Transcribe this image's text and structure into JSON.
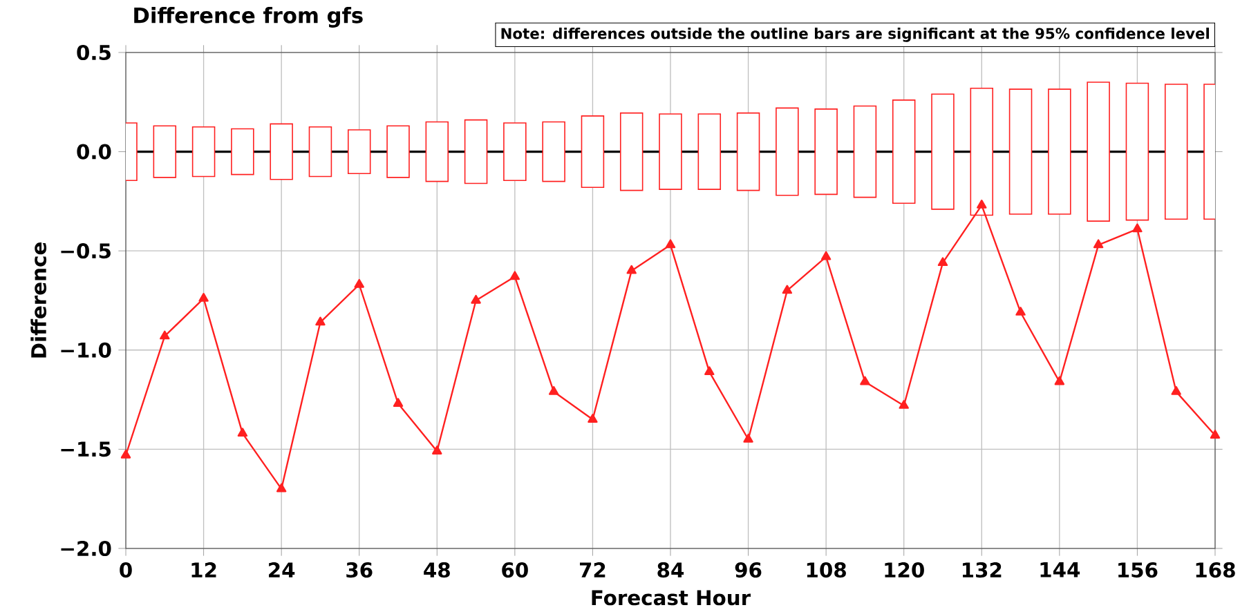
{
  "chart_data": {
    "type": "line",
    "title": "Difference from gfs",
    "annotations": [
      "Note: differences outside the outline bars are significant at the 95% confidence level"
    ],
    "xlabel": "Forecast Hour",
    "ylabel": "Difference",
    "x": [
      0,
      6,
      12,
      18,
      24,
      30,
      36,
      42,
      48,
      54,
      60,
      66,
      72,
      78,
      84,
      90,
      96,
      102,
      108,
      114,
      120,
      126,
      132,
      138,
      144,
      150,
      156,
      162,
      168
    ],
    "series": [
      {
        "type": "bar",
        "color": "#ff2020",
        "base": [
          -0.145,
          -0.13,
          -0.125,
          -0.115,
          -0.14,
          -0.125,
          -0.11,
          -0.13,
          -0.15,
          -0.16,
          -0.145,
          -0.15,
          -0.18,
          -0.195,
          -0.19,
          -0.19,
          -0.195,
          -0.22,
          -0.215,
          -0.23,
          -0.26,
          -0.29,
          -0.32,
          -0.315,
          -0.315,
          -0.35,
          -0.345,
          -0.34,
          -0.34
        ],
        "values": [
          0.29,
          0.26,
          0.25,
          0.23,
          0.28,
          0.25,
          0.22,
          0.26,
          0.3,
          0.32,
          0.29,
          0.3,
          0.36,
          0.39,
          0.38,
          0.38,
          0.39,
          0.44,
          0.43,
          0.46,
          0.52,
          0.58,
          0.64,
          0.63,
          0.63,
          0.7,
          0.69,
          0.68,
          0.68
        ]
      },
      {
        "color": "#ff2020",
        "marker": "triangle",
        "values": [
          -1.53,
          -0.93,
          -0.74,
          -1.42,
          -1.7,
          -0.86,
          -0.67,
          -1.27,
          -1.51,
          -0.75,
          -0.63,
          -1.21,
          -1.35,
          -0.6,
          -0.47,
          -1.11,
          -1.45,
          -0.7,
          -0.53,
          -1.16,
          -1.28,
          -0.56,
          -0.27,
          -0.81,
          -1.16,
          -0.47,
          -0.39,
          -1.21,
          -1.43
        ]
      }
    ],
    "ref_lines": [
      {
        "axis": "y",
        "value": 0,
        "color": "#000000"
      }
    ],
    "xlim": [
      0,
      168
    ],
    "xticks": [
      0,
      12,
      24,
      36,
      48,
      60,
      72,
      84,
      96,
      108,
      120,
      132,
      144,
      156,
      168
    ],
    "ylim": [
      -2.0,
      0.5
    ],
    "yticks": [
      {
        "value": -2,
        "label": "−2.0"
      },
      {
        "value": -1.5,
        "label": "−1.5"
      },
      {
        "value": -1,
        "label": "−1.0"
      },
      {
        "value": -0.5,
        "label": "−0.5"
      },
      {
        "value": 0,
        "label": "0.0"
      },
      {
        "value": 0.5,
        "label": "0.5"
      }
    ],
    "grid": true
  }
}
